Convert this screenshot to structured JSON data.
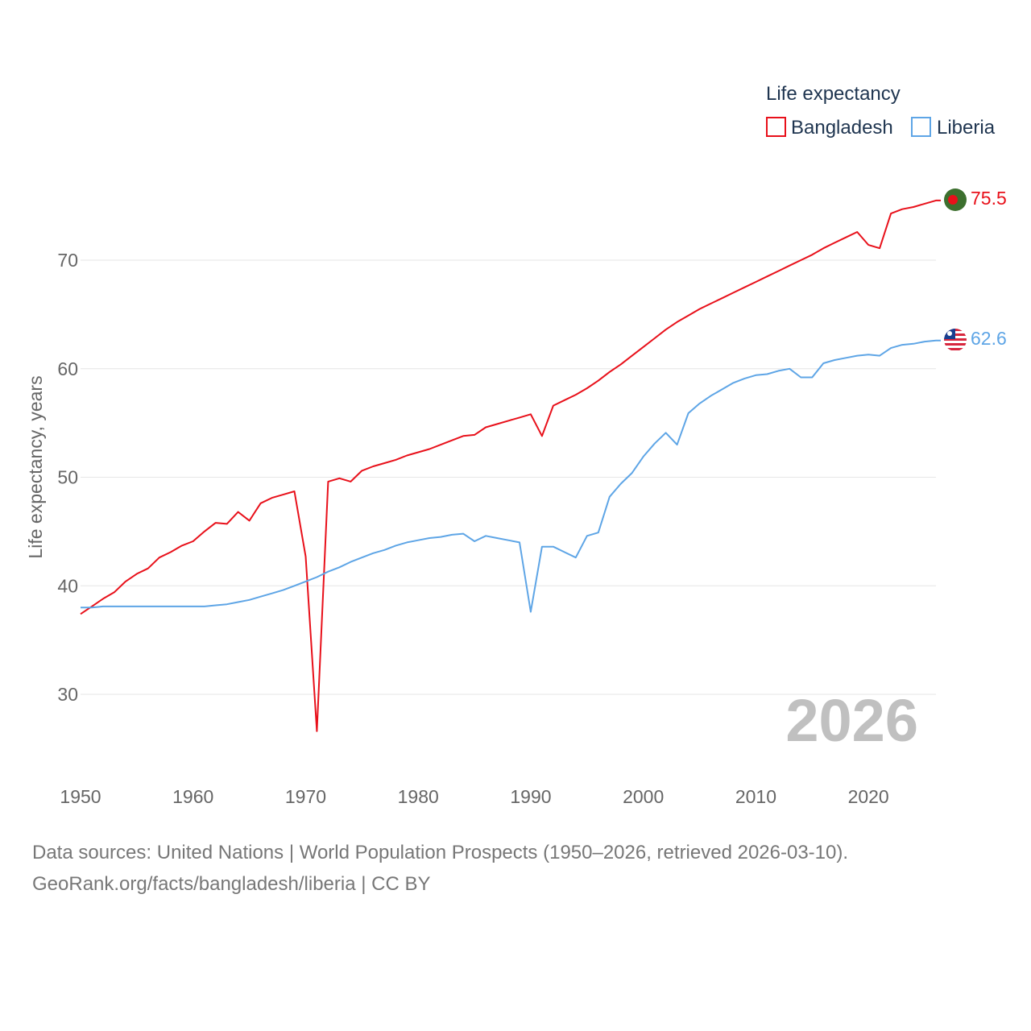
{
  "chart_data": {
    "type": "line",
    "title": "",
    "xlabel": "",
    "ylabel": "Life expectancy, years",
    "xlim": [
      1950,
      2026
    ],
    "ylim": [
      22,
      80
    ],
    "yticks": [
      30,
      40,
      50,
      60,
      70
    ],
    "xticks": [
      1950,
      1960,
      1970,
      1980,
      1990,
      2000,
      2010,
      2020
    ],
    "ytick_labels": [
      "30",
      "40",
      "50",
      "60",
      "70"
    ],
    "xtick_labels": [
      "1950",
      "1960",
      "1970",
      "1980",
      "1990",
      "2000",
      "2010",
      "2020"
    ],
    "grid": true,
    "legend_title": "Life expectancy",
    "legend_placement": "top-right",
    "current_year_label": "2026",
    "x": [
      1950,
      1951,
      1952,
      1953,
      1954,
      1955,
      1956,
      1957,
      1958,
      1959,
      1960,
      1961,
      1962,
      1963,
      1964,
      1965,
      1966,
      1967,
      1968,
      1969,
      1970,
      1971,
      1972,
      1973,
      1974,
      1975,
      1976,
      1977,
      1978,
      1979,
      1980,
      1981,
      1982,
      1983,
      1984,
      1985,
      1986,
      1987,
      1988,
      1989,
      1990,
      1991,
      1992,
      1993,
      1994,
      1995,
      1996,
      1997,
      1998,
      1999,
      2000,
      2001,
      2002,
      2003,
      2004,
      2005,
      2006,
      2007,
      2008,
      2009,
      2010,
      2011,
      2012,
      2013,
      2014,
      2015,
      2016,
      2017,
      2018,
      2019,
      2020,
      2021,
      2022,
      2023,
      2024,
      2025,
      2026
    ],
    "series": [
      {
        "name": "Bangladesh",
        "color": "#e8101a",
        "end_label": "75.5",
        "flag": "bangladesh-flag",
        "values": [
          37.4,
          38.1,
          38.8,
          39.4,
          40.4,
          41.1,
          41.6,
          42.6,
          43.1,
          43.7,
          44.1,
          45.0,
          45.8,
          45.7,
          46.8,
          46.0,
          47.6,
          48.1,
          48.4,
          48.7,
          42.7,
          26.6,
          49.6,
          49.9,
          49.6,
          50.6,
          51.0,
          51.3,
          51.6,
          52.0,
          52.3,
          52.6,
          53.0,
          53.4,
          53.8,
          53.9,
          54.6,
          54.9,
          55.2,
          55.5,
          55.8,
          53.8,
          56.6,
          57.1,
          57.6,
          58.2,
          58.9,
          59.7,
          60.4,
          61.2,
          62.0,
          62.8,
          63.6,
          64.3,
          64.9,
          65.5,
          66.0,
          66.5,
          67.0,
          67.5,
          68.0,
          68.5,
          69.0,
          69.5,
          70.0,
          70.5,
          71.1,
          71.6,
          72.1,
          72.6,
          71.4,
          71.1,
          74.3,
          74.7,
          74.9,
          75.2,
          75.5
        ]
      },
      {
        "name": "Liberia",
        "color": "#5ea5e6",
        "end_label": "62.6",
        "flag": "liberia-flag",
        "values": [
          38.0,
          38.0,
          38.1,
          38.1,
          38.1,
          38.1,
          38.1,
          38.1,
          38.1,
          38.1,
          38.1,
          38.1,
          38.2,
          38.3,
          38.5,
          38.7,
          39.0,
          39.3,
          39.6,
          40.0,
          40.4,
          40.8,
          41.3,
          41.7,
          42.2,
          42.6,
          43.0,
          43.3,
          43.7,
          44.0,
          44.2,
          44.4,
          44.5,
          44.7,
          44.8,
          44.1,
          44.6,
          44.4,
          44.2,
          44.0,
          37.6,
          43.6,
          43.6,
          43.1,
          42.6,
          44.6,
          44.9,
          48.2,
          49.4,
          50.4,
          51.9,
          53.1,
          54.1,
          53.0,
          55.9,
          56.8,
          57.5,
          58.1,
          58.7,
          59.1,
          59.4,
          59.5,
          59.8,
          60.0,
          59.2,
          59.2,
          60.5,
          60.8,
          61.0,
          61.2,
          61.3,
          61.2,
          61.9,
          62.2,
          62.3,
          62.5,
          62.6
        ]
      }
    ]
  },
  "footer": {
    "line1": "Data sources: United Nations | World Population Prospects (1950–2026, retrieved 2026-03-10).",
    "line2": "GeoRank.org/facts/bangladesh/liberia | CC BY"
  }
}
